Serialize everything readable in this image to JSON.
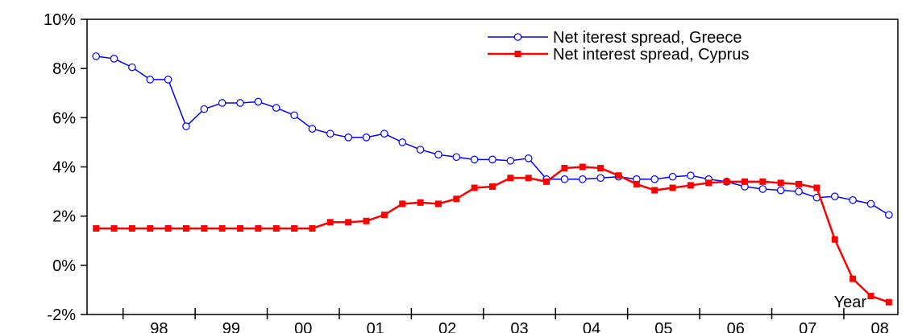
{
  "chart_data": {
    "type": "line",
    "title": "",
    "xlabel": "Year",
    "ylabel": "",
    "ylim": [
      -2,
      10
    ],
    "y_ticks": [
      "-2%",
      "0%",
      "2%",
      "4%",
      "6%",
      "8%",
      "10%"
    ],
    "y_tick_values": [
      -2,
      0,
      2,
      4,
      6,
      8,
      10
    ],
    "x_tick_labels": [
      "98",
      "99",
      "00",
      "01",
      "02",
      "03",
      "04",
      "05",
      "06",
      "07",
      "08"
    ],
    "grid": false,
    "legend_position": "top-right",
    "x_start": 1997.5,
    "quarter_step": 0.25,
    "series": [
      {
        "name": "Net iterest spread, Greece",
        "color": "#0000ff",
        "marker": "open-circle",
        "values": [
          8.5,
          8.4,
          8.05,
          7.55,
          7.55,
          5.65,
          6.35,
          6.6,
          6.6,
          6.65,
          6.4,
          6.1,
          5.55,
          5.35,
          5.2,
          5.2,
          5.35,
          5.0,
          4.7,
          4.5,
          4.4,
          4.3,
          4.3,
          4.25,
          4.35,
          3.5,
          3.5,
          3.5,
          3.55,
          3.6,
          3.5,
          3.5,
          3.6,
          3.65,
          3.5,
          3.4,
          3.2,
          3.1,
          3.05,
          3.0,
          2.75,
          2.8,
          2.65,
          2.5,
          2.05
        ]
      },
      {
        "name": "Net interest spread, Cyprus",
        "color": "#ff0000",
        "marker": "filled-square",
        "values": [
          1.5,
          1.5,
          1.5,
          1.5,
          1.5,
          1.5,
          1.5,
          1.5,
          1.5,
          1.5,
          1.5,
          1.5,
          1.5,
          1.75,
          1.75,
          1.8,
          2.05,
          2.5,
          2.55,
          2.5,
          2.7,
          3.15,
          3.2,
          3.55,
          3.55,
          3.4,
          3.95,
          4.0,
          3.95,
          3.65,
          3.3,
          3.05,
          3.15,
          3.25,
          3.35,
          3.4,
          3.4,
          3.4,
          3.35,
          3.3,
          3.15,
          1.05,
          -0.55,
          -1.25,
          -1.5
        ]
      }
    ]
  }
}
